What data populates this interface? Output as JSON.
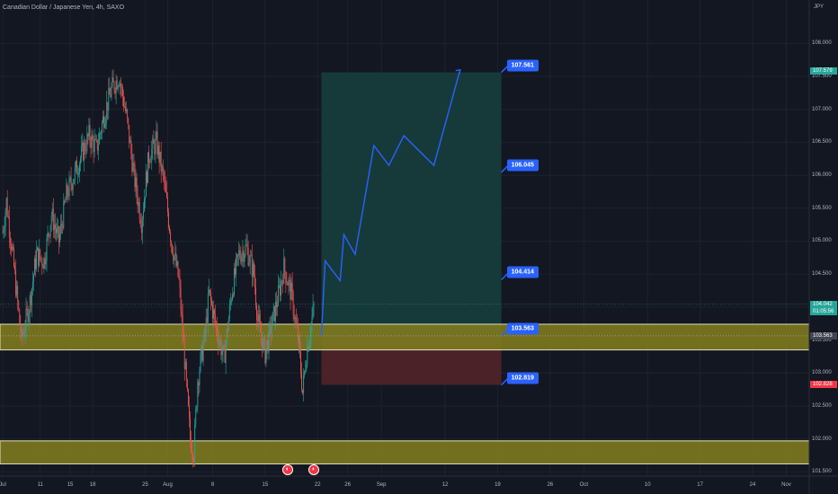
{
  "header": {
    "title": "Canadian Dollar / Japanese Yen, 4h, SAXO",
    "currency": "JPY"
  },
  "colors": {
    "background": "#131722",
    "up_candle": "#26a69a",
    "down_candle": "#ef5350",
    "zone_fill": "#7d7a1f",
    "profit_fill": "#163a39",
    "loss_fill": "#4a2228",
    "projection": "#2962ff",
    "last_price": "#26a69a",
    "stop_price": "#f23645"
  },
  "chart_data": {
    "type": "candlestick",
    "symbol": "CADJPY",
    "timeframe": "4h",
    "ylim": [
      101.3,
      108.55
    ],
    "y_ticks": [
      "108.000",
      "107.500",
      "107.000",
      "106.500",
      "106.000",
      "105.500",
      "105.000",
      "104.500",
      "104.000",
      "103.500",
      "103.000",
      "102.500",
      "102.000",
      "101.500"
    ],
    "y_tick_values": [
      108.0,
      107.5,
      107.0,
      106.5,
      106.0,
      105.5,
      105.0,
      104.5,
      104.0,
      103.5,
      103.0,
      102.5,
      102.0,
      101.5
    ],
    "x_ticks": [
      {
        "label": "Jul",
        "t": 0
      },
      {
        "label": "11",
        "t": 10
      },
      {
        "label": "15",
        "t": 18
      },
      {
        "label": "18",
        "t": 24
      },
      {
        "label": "25",
        "t": 38
      },
      {
        "label": "Aug",
        "t": 44
      },
      {
        "label": "8",
        "t": 56
      },
      {
        "label": "15",
        "t": 70
      },
      {
        "label": "22",
        "t": 84
      },
      {
        "label": "26",
        "t": 92
      },
      {
        "label": "Sep",
        "t": 101
      },
      {
        "label": "12",
        "t": 118
      },
      {
        "label": "19",
        "t": 132
      },
      {
        "label": "26",
        "t": 146
      },
      {
        "label": "Oct",
        "t": 155
      },
      {
        "label": "10",
        "t": 172
      },
      {
        "label": "17",
        "t": 186
      },
      {
        "label": "24",
        "t": 200
      },
      {
        "label": "Nov",
        "t": 209
      }
    ],
    "price_path": [
      {
        "t": -2,
        "v": 104.2
      },
      {
        "t": 1,
        "v": 105.6
      },
      {
        "t": 3,
        "v": 104.6
      },
      {
        "t": 5,
        "v": 103.5
      },
      {
        "t": 7,
        "v": 104.0
      },
      {
        "t": 9,
        "v": 104.8
      },
      {
        "t": 11,
        "v": 104.7
      },
      {
        "t": 13,
        "v": 105.4
      },
      {
        "t": 15,
        "v": 105.0
      },
      {
        "t": 17,
        "v": 105.7
      },
      {
        "t": 19,
        "v": 106.0
      },
      {
        "t": 21,
        "v": 106.3
      },
      {
        "t": 23,
        "v": 106.6
      },
      {
        "t": 25,
        "v": 106.4
      },
      {
        "t": 27,
        "v": 106.9
      },
      {
        "t": 29,
        "v": 107.3
      },
      {
        "t": 31,
        "v": 107.5
      },
      {
        "t": 33,
        "v": 106.9
      },
      {
        "t": 35,
        "v": 106.0
      },
      {
        "t": 37,
        "v": 105.3
      },
      {
        "t": 39,
        "v": 106.3
      },
      {
        "t": 41,
        "v": 106.5
      },
      {
        "t": 43,
        "v": 105.9
      },
      {
        "t": 45,
        "v": 105.0
      },
      {
        "t": 47,
        "v": 104.4
      },
      {
        "t": 48,
        "v": 103.6
      },
      {
        "t": 49,
        "v": 102.8
      },
      {
        "t": 50,
        "v": 102.0
      },
      {
        "t": 51,
        "v": 101.8
      },
      {
        "t": 52,
        "v": 102.9
      },
      {
        "t": 54,
        "v": 103.6
      },
      {
        "t": 55,
        "v": 104.2
      },
      {
        "t": 57,
        "v": 103.7
      },
      {
        "t": 59,
        "v": 103.2
      },
      {
        "t": 61,
        "v": 104.2
      },
      {
        "t": 63,
        "v": 104.8
      },
      {
        "t": 65,
        "v": 104.9
      },
      {
        "t": 67,
        "v": 104.5
      },
      {
        "t": 68,
        "v": 103.8
      },
      {
        "t": 70,
        "v": 103.3
      },
      {
        "t": 72,
        "v": 103.8
      },
      {
        "t": 74,
        "v": 104.3
      },
      {
        "t": 75,
        "v": 104.6
      },
      {
        "t": 77,
        "v": 104.2
      },
      {
        "t": 79,
        "v": 103.4
      },
      {
        "t": 80,
        "v": 102.7
      },
      {
        "t": 81,
        "v": 103.3
      },
      {
        "t": 83,
        "v": 104.0
      }
    ],
    "support_zones": [
      {
        "top": 103.74,
        "bottom": 103.35
      },
      {
        "top": 101.97,
        "bottom": 101.62
      }
    ],
    "position": {
      "type": "long",
      "t_start": 85,
      "t_end": 133,
      "entry": 103.563,
      "target": 107.561,
      "stop": 102.819
    },
    "projection": [
      {
        "t": 85,
        "v": 103.56
      },
      {
        "t": 86,
        "v": 104.7
      },
      {
        "t": 90,
        "v": 104.4
      },
      {
        "t": 91,
        "v": 105.1
      },
      {
        "t": 94,
        "v": 104.8
      },
      {
        "t": 99,
        "v": 106.45
      },
      {
        "t": 103,
        "v": 106.15
      },
      {
        "t": 107,
        "v": 106.6
      },
      {
        "t": 115,
        "v": 106.15
      },
      {
        "t": 122,
        "v": 107.6
      }
    ],
    "target_labels": [
      {
        "value": 107.561,
        "label": "107.561"
      },
      {
        "value": 106.045,
        "label": "106.045"
      },
      {
        "value": 104.414,
        "label": "104.414"
      },
      {
        "value": 103.563,
        "label": "103.563"
      },
      {
        "value": 102.819,
        "label": "102.819"
      }
    ],
    "price_tags": [
      {
        "value": 107.579,
        "label": "107.579",
        "color": "#26a69a"
      },
      {
        "value": 104.042,
        "label": "104.042",
        "sub": "01:05:56",
        "color": "#26a69a"
      },
      {
        "value": 103.563,
        "label": "103.563",
        "color": "#434651"
      },
      {
        "value": 102.828,
        "label": "102.828",
        "color": "#f23645"
      }
    ],
    "events_t": [
      76,
      83
    ]
  }
}
